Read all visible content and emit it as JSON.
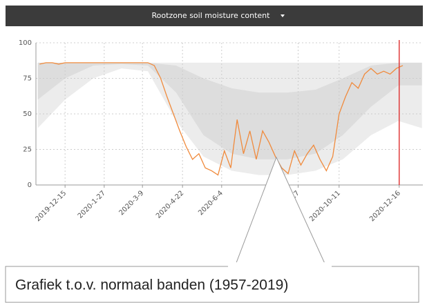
{
  "chart_data": {
    "type": "line",
    "title": "Rootzone soil moisture content",
    "annotation": "Grafiek t.o.v. normaal banden (1957-2019)",
    "xlim": [
      "2019-11-13",
      "2021-01-11"
    ],
    "xticks": [
      "2019-12-15",
      "2020-1-27",
      "2020-3-9",
      "2020-4-22",
      "2020-6-4",
      "2020-8-27",
      "2020-10-11",
      "2020-12-16"
    ],
    "ylim": [
      0,
      100
    ],
    "yticks": [
      0,
      25,
      50,
      75,
      100
    ],
    "grid": true,
    "x": [
      "2019-11-17",
      "2019-11-24",
      "2019-12-1",
      "2019-12-8",
      "2019-12-15",
      "2019-12-22",
      "2019-12-29",
      "2020-1-5",
      "2020-1-12",
      "2020-1-19",
      "2020-1-26",
      "2020-2-2",
      "2020-2-9",
      "2020-2-16",
      "2020-2-23",
      "2020-3-1",
      "2020-3-8",
      "2020-3-15",
      "2020-3-22",
      "2020-3-29",
      "2020-4-5",
      "2020-4-12",
      "2020-4-19",
      "2020-4-26",
      "2020-5-3",
      "2020-5-10",
      "2020-5-17",
      "2020-5-24",
      "2020-5-31",
      "2020-6-7",
      "2020-6-14",
      "2020-6-21",
      "2020-6-28",
      "2020-7-5",
      "2020-7-12",
      "2020-7-19",
      "2020-7-26",
      "2020-8-2",
      "2020-8-9",
      "2020-8-16",
      "2020-8-23",
      "2020-8-30",
      "2020-9-6",
      "2020-9-13",
      "2020-9-20",
      "2020-9-27",
      "2020-10-4",
      "2020-10-11",
      "2020-10-18",
      "2020-10-25",
      "2020-11-1",
      "2020-11-8",
      "2020-11-15",
      "2020-11-22",
      "2020-11-29",
      "2020-12-6",
      "2020-12-13",
      "2020-12-20"
    ],
    "series": [
      {
        "color": "#f08a3c",
        "values": [
          85,
          86,
          86,
          85,
          86,
          86,
          86,
          86,
          86,
          86,
          86,
          86,
          86,
          86,
          86,
          86,
          86,
          86,
          84,
          75,
          62,
          50,
          38,
          27,
          18,
          22,
          12,
          10,
          7,
          24,
          12,
          46,
          22,
          38,
          18,
          38,
          30,
          20,
          12,
          8,
          24,
          14,
          22,
          28,
          18,
          10,
          20,
          50,
          62,
          72,
          68,
          78,
          82,
          78,
          80,
          78,
          82,
          84
        ]
      }
    ],
    "bands": [
      {
        "color": "#ececec",
        "x": [
          "2019-11-15",
          "2019-12-15",
          "2020-1-15",
          "2020-2-15",
          "2020-3-15",
          "2020-4-15",
          "2020-5-15",
          "2020-6-15",
          "2020-7-15",
          "2020-8-15",
          "2020-9-15",
          "2020-10-15",
          "2020-11-15",
          "2020-12-15",
          "2021-1-10"
        ],
        "lower": [
          40,
          60,
          75,
          82,
          80,
          45,
          20,
          10,
          7,
          7,
          10,
          18,
          35,
          45,
          40
        ],
        "upper": [
          86,
          86,
          86,
          86,
          86,
          86,
          86,
          86,
          86,
          86,
          86,
          86,
          86,
          86,
          86
        ]
      },
      {
        "color": "#dddddd",
        "x": [
          "2019-11-15",
          "2019-12-15",
          "2020-1-15",
          "2020-2-15",
          "2020-3-15",
          "2020-4-15",
          "2020-5-15",
          "2020-6-15",
          "2020-7-15",
          "2020-8-15",
          "2020-9-15",
          "2020-10-15",
          "2020-11-15",
          "2020-12-15",
          "2021-1-10"
        ],
        "lower": [
          60,
          75,
          84,
          85,
          84,
          65,
          35,
          22,
          18,
          18,
          22,
          35,
          55,
          70,
          70
        ],
        "upper": [
          86,
          86,
          86,
          86,
          86,
          84,
          75,
          68,
          65,
          65,
          67,
          75,
          84,
          86,
          86
        ]
      }
    ],
    "marker_line": {
      "x": "2020-12-16",
      "color": "#e03a3a"
    }
  }
}
